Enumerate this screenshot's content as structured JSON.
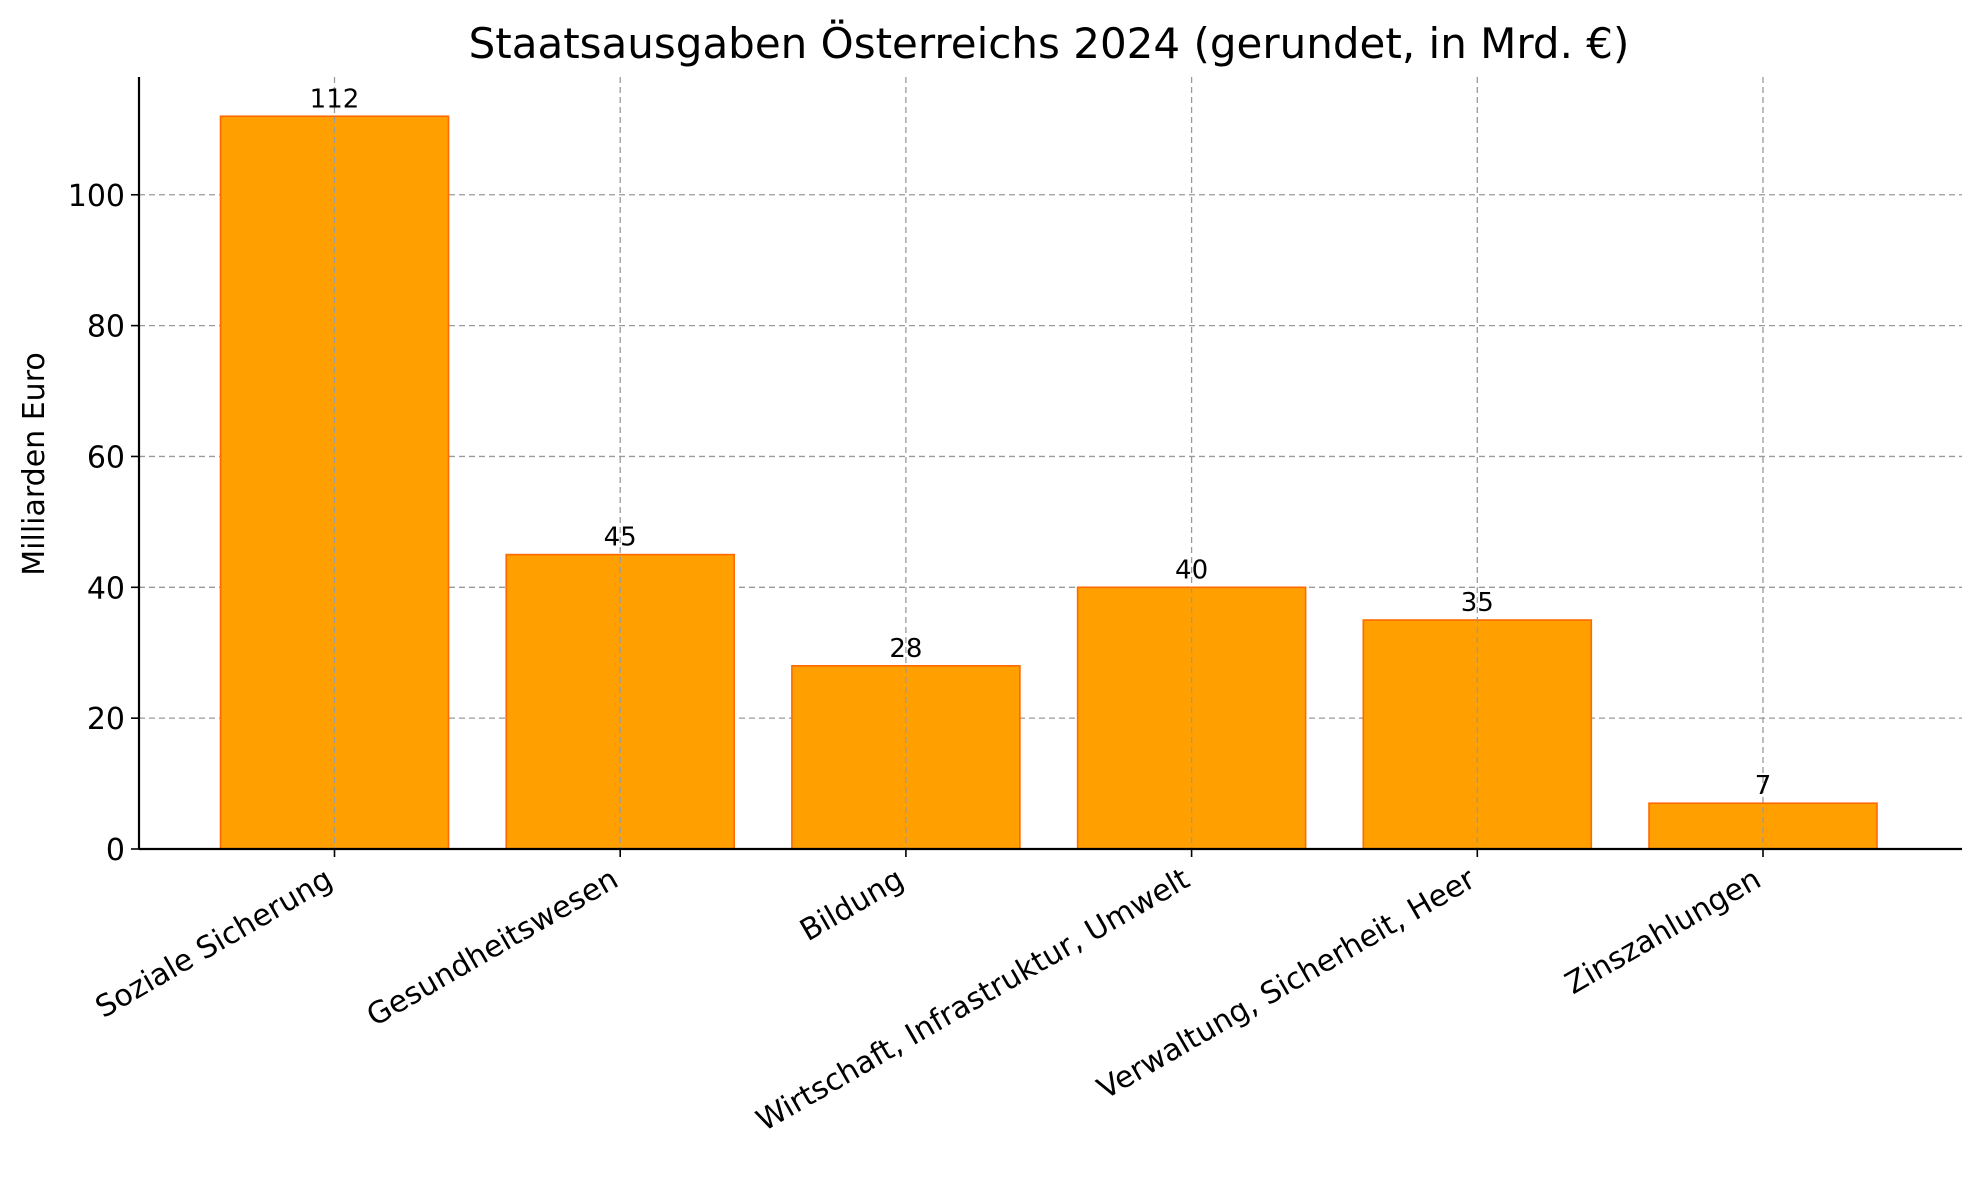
{
  "chart_data": {
    "type": "bar",
    "title": "Staatsausgaben Österreichs 2024 (gerundet, in Mrd. €)",
    "xlabel": "",
    "ylabel": "Milliarden Euro",
    "categories": [
      "Soziale Sicherung",
      "Gesundheitswesen",
      "Bildung",
      "Wirtschaft, Infrastruktur, Umwelt",
      "Verwaltung, Sicherheit, Heer",
      "Zinszahlungen"
    ],
    "values": [
      112,
      45,
      28,
      40,
      35,
      7
    ],
    "data_labels": [
      "112",
      "45",
      "28",
      "40",
      "35",
      "7"
    ],
    "ylim": [
      0,
      118
    ],
    "yticks": [
      0,
      20,
      40,
      60,
      80,
      100
    ],
    "grid": true,
    "bar_color": "#FFA000",
    "bar_edge_color": "#FF6A00"
  }
}
